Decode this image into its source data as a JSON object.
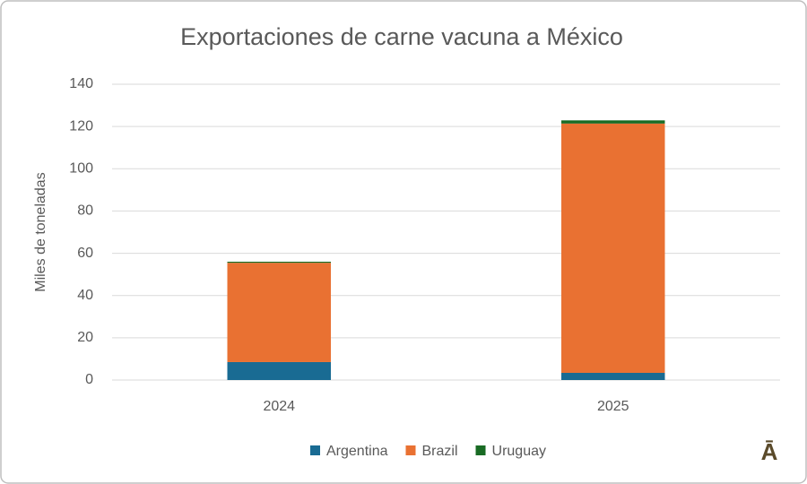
{
  "chart_data": {
    "type": "stacked_bar",
    "title": "Exportaciones de carne vacuna a México",
    "y_label": "Miles de toneladas",
    "categories": [
      "2024",
      "2025"
    ],
    "series": [
      {
        "name": "Argentina",
        "color": "#196b93",
        "values": [
          8.5,
          3.4
        ]
      },
      {
        "name": "Brazil",
        "color": "#e97132",
        "values": [
          47,
          118
        ]
      },
      {
        "name": "Uruguay",
        "color": "#196b24",
        "values": [
          0.5,
          1.5
        ]
      }
    ],
    "ylim": [
      0,
      140
    ],
    "yticks": [
      0,
      20,
      40,
      60,
      80,
      100,
      120,
      140
    ],
    "grid": true,
    "legend": "bottom",
    "watermark": "Ā"
  }
}
